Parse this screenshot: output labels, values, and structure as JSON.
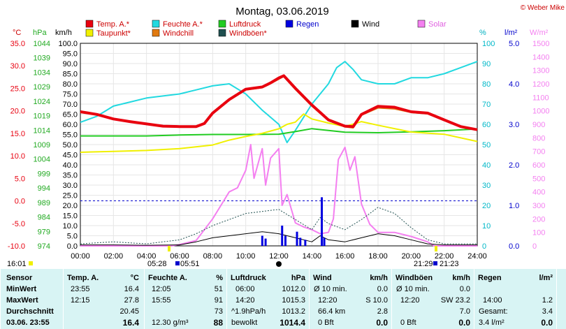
{
  "title": "Montag, 03.06.2019",
  "copyright": "© Weber Mike",
  "legend": [
    {
      "label": "Temp. A.*",
      "color": "#e8000f"
    },
    {
      "label": "Feuchte A.*",
      "color": "#22d9e0"
    },
    {
      "label": "Luftdruck",
      "color": "#22cc22"
    },
    {
      "label": "Regen",
      "color": "#0000e0"
    },
    {
      "label": "Wind",
      "color": "#000000"
    },
    {
      "label": "Solar",
      "color": "#f47ff0"
    },
    {
      "label": "Taupunkt*",
      "color": "#f0f000"
    },
    {
      "label": "Windchill",
      "color": "#e07a10"
    },
    {
      "label": "Windböen*",
      "color": "#205050"
    }
  ],
  "axes_units": {
    "temp": "°C",
    "press": "hPa",
    "wind": "km/h",
    "hum": "%",
    "rain": "l/m²",
    "solar": "W/m²"
  },
  "sun_markers": {
    "sunrise": "05:28",
    "sunrise2": "05:51",
    "sunset": "21:29",
    "sunset2": "21:23",
    "noon_time": "16:01"
  },
  "chart_data": {
    "type": "line",
    "title": "Montag, 03.06.2019",
    "x_ticks": [
      "00:00",
      "02:00",
      "04:00",
      "06:00",
      "08:00",
      "10:00",
      "12:00",
      "14:00",
      "16:00",
      "18:00",
      "20:00",
      "22:00",
      "24:00"
    ],
    "xlim": [
      0,
      24
    ],
    "temp_ticks": [
      "35.0",
      "30.0",
      "25.0",
      "20.0",
      "15.0",
      "10.0",
      "5.0",
      "0.0",
      "-5.0",
      "-10.0"
    ],
    "press_ticks": [
      "1044",
      "1039",
      "1034",
      "1029",
      "1024",
      "1019",
      "1014",
      "1009",
      "1004",
      "999",
      "994",
      "989",
      "984",
      "979",
      "974"
    ],
    "wind_ticks": [
      "100.0",
      "95.0",
      "90.0",
      "85.0",
      "80.0",
      "75.0",
      "70.0",
      "65.0",
      "60.0",
      "55.0",
      "50.0",
      "45.0",
      "40.0",
      "35.0",
      "30.0",
      "25.0",
      "20.0",
      "15.0",
      "10.0",
      "5.0",
      "0.0"
    ],
    "hum_ticks": [
      "100",
      "90",
      "80",
      "70",
      "60",
      "50",
      "40",
      "30",
      "20",
      "10",
      "0"
    ],
    "rain_ticks": [
      "5.0",
      "4.0",
      "3.0",
      "2.0",
      "1.0",
      "0.0"
    ],
    "solar_ticks": [
      "1500",
      "1400",
      "1300",
      "1200",
      "1100",
      "1000",
      "900",
      "800",
      "700",
      "600",
      "500",
      "400",
      "300",
      "200",
      "100",
      "0"
    ],
    "temp_ylim": [
      -10,
      35
    ],
    "wind_ylim": [
      0,
      100
    ],
    "series": [
      {
        "name": "Temp. A.*",
        "color": "#e8000f",
        "axis": "temp",
        "x": [
          0,
          1,
          2,
          3,
          4,
          5,
          6,
          7,
          7.5,
          8,
          9,
          10,
          11,
          11.5,
          12,
          12.3,
          13,
          14,
          15,
          16,
          16.5,
          17,
          18,
          19,
          20,
          21,
          22,
          23,
          24
        ],
        "y": [
          19.8,
          19.2,
          18.2,
          17.6,
          17.1,
          16.6,
          16.5,
          16.5,
          17.2,
          19.5,
          22.5,
          24.8,
          25.3,
          26.2,
          27.3,
          27.8,
          25,
          21.3,
          18,
          16.6,
          16.5,
          19.2,
          21,
          20.8,
          19.8,
          19.5,
          18,
          16.5,
          15.8
        ]
      },
      {
        "name": "Feuchte A.*",
        "color": "#22d9e0",
        "axis": "hum",
        "x": [
          0,
          1,
          2,
          3,
          4,
          5,
          6,
          7,
          8,
          9,
          10,
          11,
          12,
          12.5,
          13,
          14,
          15,
          15.5,
          16,
          16.5,
          17,
          18,
          19,
          20,
          21,
          22,
          23,
          24
        ],
        "y": [
          61,
          64,
          69,
          71,
          73,
          74,
          75,
          77,
          79,
          80,
          75,
          67,
          60,
          51,
          57,
          70,
          80,
          88,
          91,
          87,
          82,
          80,
          80,
          83,
          83,
          85,
          88,
          91
        ]
      },
      {
        "name": "Luftdruck",
        "color": "#22cc22",
        "axis": "press",
        "x": [
          0,
          2,
          4,
          6,
          8,
          10,
          12,
          13,
          14,
          16,
          18,
          20,
          22,
          24
        ],
        "y": [
          1012.0,
          1012.0,
          1012.0,
          1012.3,
          1012.5,
          1012.5,
          1012.6,
          1013.5,
          1014.5,
          1013.3,
          1013.1,
          1013.4,
          1013.8,
          1014.4
        ]
      },
      {
        "name": "Taupunkt*",
        "color": "#f0f000",
        "axis": "temp",
        "x": [
          0,
          2,
          4,
          6,
          8,
          9,
          10,
          11,
          12,
          12.5,
          13,
          13.5,
          14,
          15,
          16,
          17,
          18,
          20,
          22,
          24
        ],
        "y": [
          10.8,
          11,
          11.2,
          11.6,
          12.4,
          13.5,
          14.3,
          15,
          16,
          17,
          17.5,
          19.3,
          18.2,
          17.3,
          16.5,
          17.6,
          16.8,
          15.3,
          14.8,
          13.2
        ]
      },
      {
        "name": "Windchill",
        "color": "#e07a10",
        "axis": "temp",
        "x": [
          0,
          1,
          2,
          3,
          4,
          5,
          6,
          7,
          7.5,
          8,
          9,
          10,
          11,
          11.5,
          12,
          12.3,
          13,
          14,
          15,
          16,
          16.5,
          17,
          18,
          19,
          20,
          21,
          22,
          23,
          24
        ],
        "y": [
          19.8,
          19.2,
          18.2,
          17.6,
          17.1,
          16.6,
          16.5,
          16.5,
          17.2,
          19.3,
          22.3,
          24.6,
          25.1,
          26,
          27,
          27.6,
          24.7,
          21,
          17.8,
          16.4,
          16.2,
          19,
          20.6,
          20.4,
          19.6,
          19.3,
          17.9,
          16.4,
          15.7
        ]
      },
      {
        "name": "Solar",
        "color": "#f47ff0",
        "axis": "solar",
        "x": [
          0,
          5.5,
          6,
          7,
          7.5,
          8,
          8.5,
          9,
          9.5,
          10,
          10.3,
          10.5,
          11,
          11.2,
          11.5,
          12,
          12.2,
          12.5,
          13,
          13.5,
          14,
          14.5,
          15,
          15.3,
          15.6,
          16,
          16.3,
          16.6,
          17,
          17.5,
          18,
          19,
          20,
          21,
          21.4,
          24
        ],
        "y": [
          0,
          0,
          10,
          40,
          120,
          200,
          300,
          400,
          430,
          560,
          750,
          500,
          720,
          450,
          650,
          720,
          300,
          380,
          170,
          140,
          120,
          90,
          100,
          200,
          640,
          730,
          560,
          660,
          310,
          160,
          100,
          100,
          70,
          30,
          0,
          0
        ]
      },
      {
        "name": "Wind",
        "color": "#000000",
        "axis": "wind",
        "x": [
          0,
          2,
          4,
          6,
          7,
          8,
          9,
          10,
          11,
          12,
          13,
          14,
          14.5,
          15,
          16,
          17,
          18,
          19,
          20,
          21,
          22,
          24
        ],
        "y": [
          0.5,
          0.5,
          0.3,
          0.5,
          2,
          4,
          5,
          6,
          7,
          6,
          4,
          2,
          5,
          3,
          2,
          4,
          6,
          5,
          3,
          1,
          0.5,
          0.5
        ]
      },
      {
        "name": "Windböen*",
        "color": "#205050",
        "axis": "wind",
        "x": [
          0,
          2,
          4,
          6,
          7,
          8,
          9,
          10,
          11,
          12,
          13,
          14,
          14.5,
          15,
          16,
          17,
          18,
          19,
          20,
          21,
          22,
          24
        ],
        "y": [
          1,
          2,
          1,
          3,
          6,
          10,
          13,
          16,
          17,
          18,
          13,
          8,
          14,
          11,
          8,
          13,
          19,
          16,
          9,
          3,
          1,
          1
        ]
      }
    ],
    "rain": {
      "name": "Regen",
      "color": "#0000e0",
      "x": [
        11,
        11.2,
        12.2,
        12.4,
        13.1,
        13.3,
        13.6,
        14.6,
        14.75
      ],
      "y": [
        0.25,
        0.18,
        0.5,
        0.25,
        0.35,
        0.2,
        0.15,
        1.2,
        0.2
      ]
    }
  },
  "table": {
    "headers": {
      "sensor": "Sensor",
      "temp": "Temp. A.",
      "temp_unit": "°C",
      "hum": "Feuchte A.",
      "hum_unit": "%",
      "press": "Luftdruck",
      "press_unit": "hPa",
      "wind": "Wind",
      "wind_unit": "km/h",
      "gust": "Windböen",
      "gust_unit": "km/h",
      "rain": "Regen",
      "rain_unit": "l/m²"
    },
    "row_labels": {
      "min": "MinWert",
      "max": "MaxWert",
      "avg": "Durchschnitt",
      "now": "03.06. 23:55"
    },
    "temp": {
      "min_t": "23:55",
      "min_v": "16.4",
      "max_t": "12:15",
      "max_v": "27.8",
      "avg_v": "20.45",
      "now_v": "16.4"
    },
    "hum": {
      "min_t": "12:05",
      "min_v": "51",
      "max_t": "15:55",
      "max_v": "91",
      "avg_v": "73",
      "now_l": "12.30 g/m³",
      "now_v": "88"
    },
    "press": {
      "min_t": "06:00",
      "min_v": "1012.0",
      "max_t": "14:20",
      "max_v": "1015.3",
      "avg_l": "^1.9hPa/h",
      "avg_v": "1013.2",
      "now_l": "bewolkt",
      "now_v": "1014.4"
    },
    "wind": {
      "min_l": "Ø 10 min.",
      "min_v": "0.0",
      "max_t": "12:20",
      "max_v": "S 10.0",
      "avg_l": "66.4 km",
      "avg_v": "2.8",
      "now_l": "0 Bft",
      "now_v": "0.0"
    },
    "gust": {
      "min_l": "Ø 10 min.",
      "min_v": "0.0",
      "max_t": "12:20",
      "max_v": "SW 23.2",
      "avg_v": "7.0",
      "now_l": "0 Bft",
      "now_v": "0.0"
    },
    "rain": {
      "max_t": "14:00",
      "max_v": "1.2",
      "avg_l": "Gesamt:",
      "avg_v": "3.4",
      "now_l": "3.4 l/m²",
      "now_v": "0.0"
    }
  }
}
